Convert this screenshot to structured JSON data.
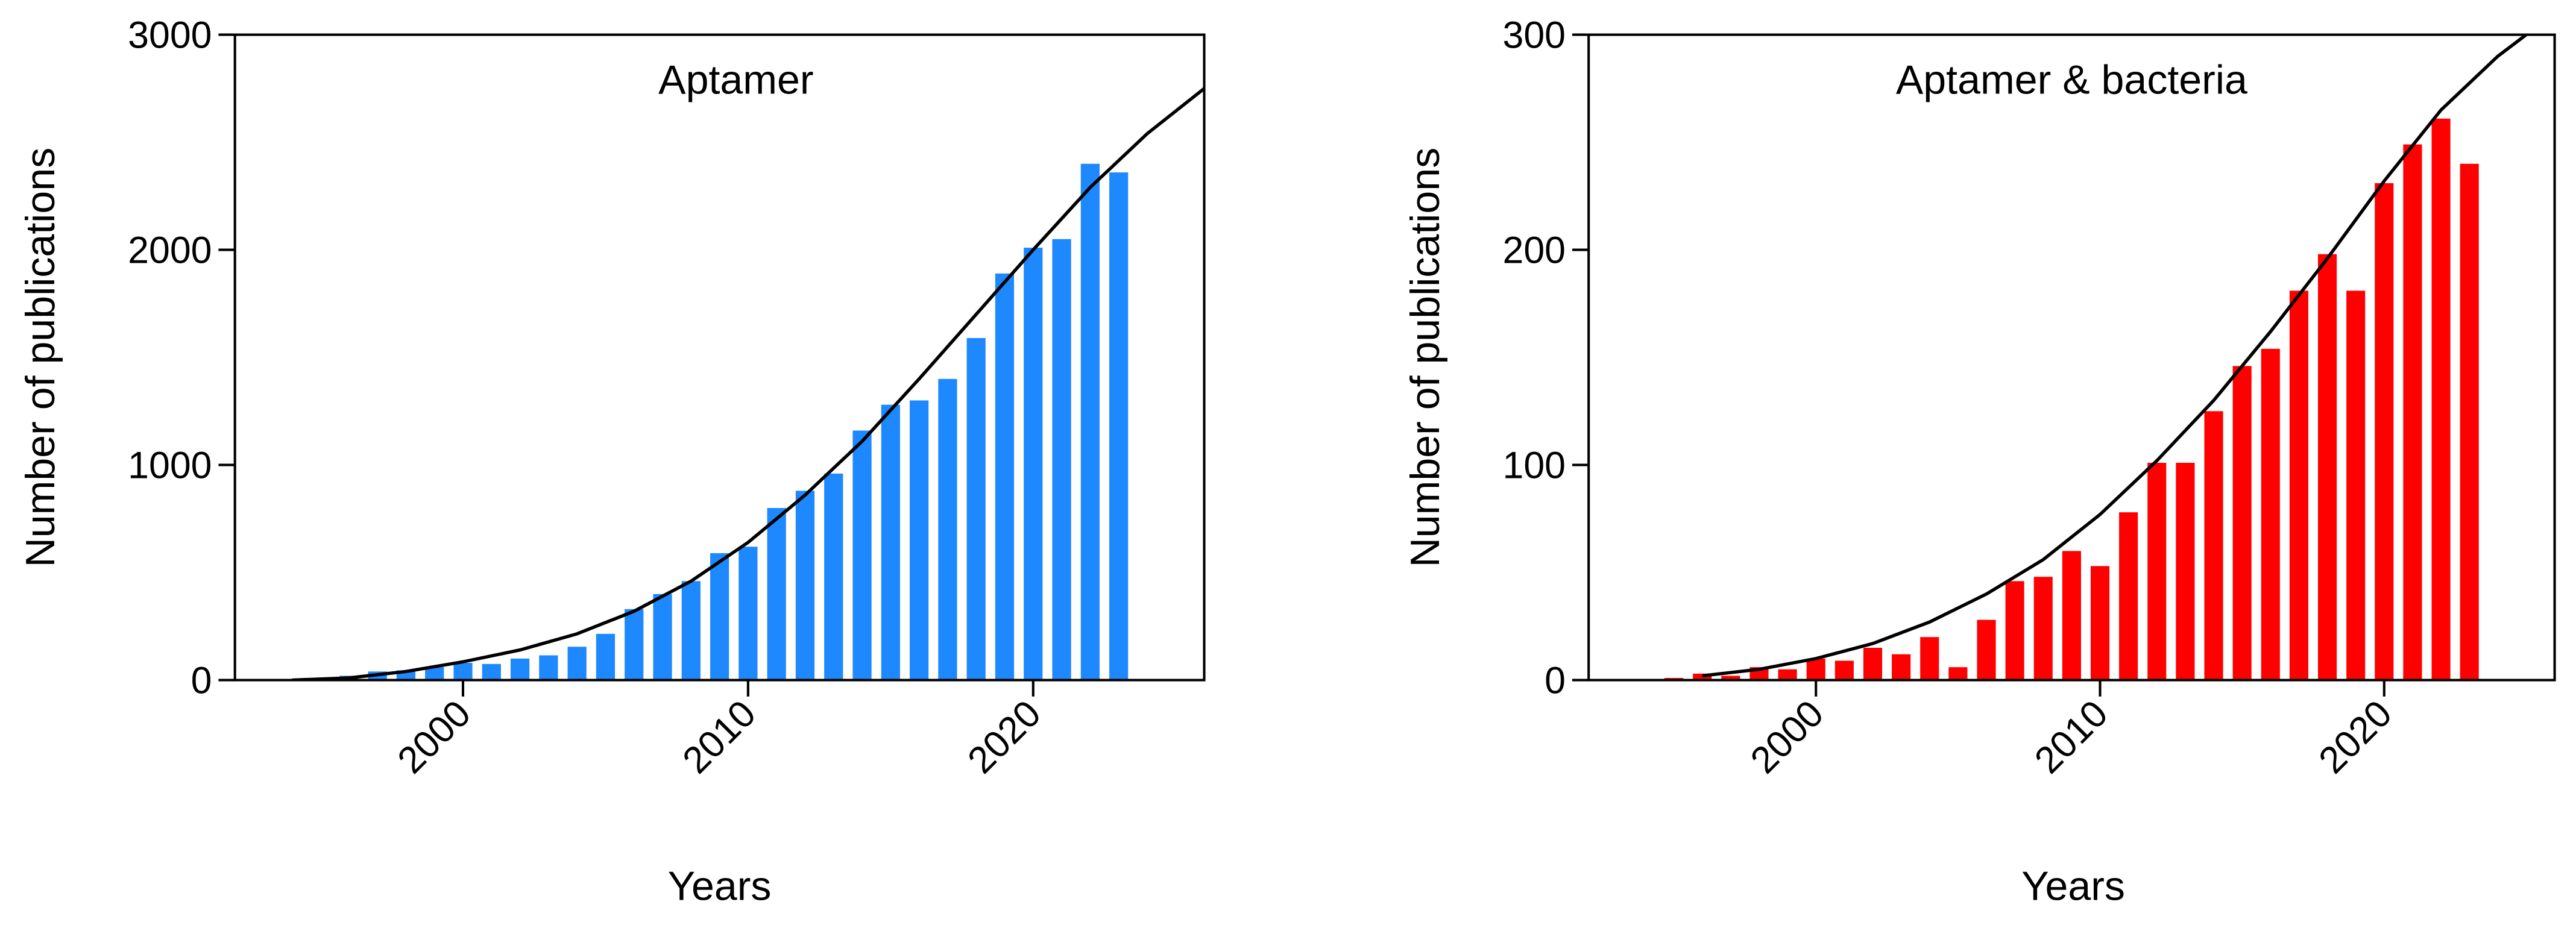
{
  "chart_data": [
    {
      "type": "bar",
      "title": "Aptamer",
      "xlabel": "Years",
      "ylabel": "Number of publications",
      "x": [
        1993,
        1994,
        1995,
        1996,
        1997,
        1998,
        1999,
        2000,
        2001,
        2002,
        2003,
        2004,
        2005,
        2006,
        2007,
        2008,
        2009,
        2010,
        2011,
        2012,
        2013,
        2014,
        2015,
        2016,
        2017,
        2018,
        2019,
        2020,
        2021,
        2022,
        2023
      ],
      "series": [
        {
          "type": "bar",
          "color": "#1e88ff",
          "values": [
            5,
            5,
            10,
            20,
            40,
            45,
            60,
            80,
            75,
            100,
            115,
            155,
            215,
            330,
            400,
            460,
            590,
            620,
            800,
            880,
            960,
            1160,
            1280,
            1300,
            1400,
            1590,
            1890,
            2010,
            2050,
            2400,
            2360
          ]
        },
        {
          "type": "line",
          "color": "#000000",
          "x": [
            1994,
            1996,
            1998,
            2000,
            2002,
            2004,
            2006,
            2008,
            2010,
            2012,
            2014,
            2016,
            2018,
            2020,
            2022,
            2024,
            2026
          ],
          "values": [
            0,
            10,
            40,
            85,
            140,
            215,
            320,
            460,
            640,
            860,
            1110,
            1400,
            1700,
            2000,
            2290,
            2540,
            2750
          ]
        }
      ],
      "xlim": [
        1992,
        2026
      ],
      "xticks": [
        2000,
        2010,
        2020
      ],
      "ylim": [
        0,
        3000
      ],
      "yticks": [
        0,
        1000,
        2000,
        3000
      ]
    },
    {
      "type": "bar",
      "title": "Aptamer & bacteria",
      "xlabel": "Years",
      "ylabel": "Number of publications",
      "x": [
        1993,
        1994,
        1995,
        1996,
        1997,
        1998,
        1999,
        2000,
        2001,
        2002,
        2003,
        2004,
        2005,
        2006,
        2007,
        2008,
        2009,
        2010,
        2011,
        2012,
        2013,
        2014,
        2015,
        2016,
        2017,
        2018,
        2019,
        2020,
        2021,
        2022,
        2023
      ],
      "series": [
        {
          "type": "bar",
          "color": "#ff0000",
          "values": [
            0,
            0,
            1,
            3,
            2,
            6,
            5,
            10,
            9,
            15,
            12,
            20,
            6,
            28,
            46,
            48,
            60,
            53,
            78,
            101,
            101,
            125,
            146,
            154,
            181,
            198,
            181,
            231,
            249,
            261,
            240
          ]
        },
        {
          "type": "line",
          "color": "#000000",
          "x": [
            1996,
            1998,
            2000,
            2002,
            2004,
            2006,
            2008,
            2010,
            2012,
            2014,
            2016,
            2018,
            2020,
            2022,
            2024,
            2025
          ],
          "values": [
            2,
            5,
            10,
            17,
            27,
            40,
            56,
            77,
            102,
            130,
            162,
            196,
            232,
            265,
            290,
            300
          ]
        }
      ],
      "xlim": [
        1992,
        2026
      ],
      "xticks": [
        2000,
        2010,
        2020
      ],
      "ylim": [
        0,
        300
      ],
      "yticks": [
        0,
        100,
        200,
        300
      ]
    }
  ]
}
